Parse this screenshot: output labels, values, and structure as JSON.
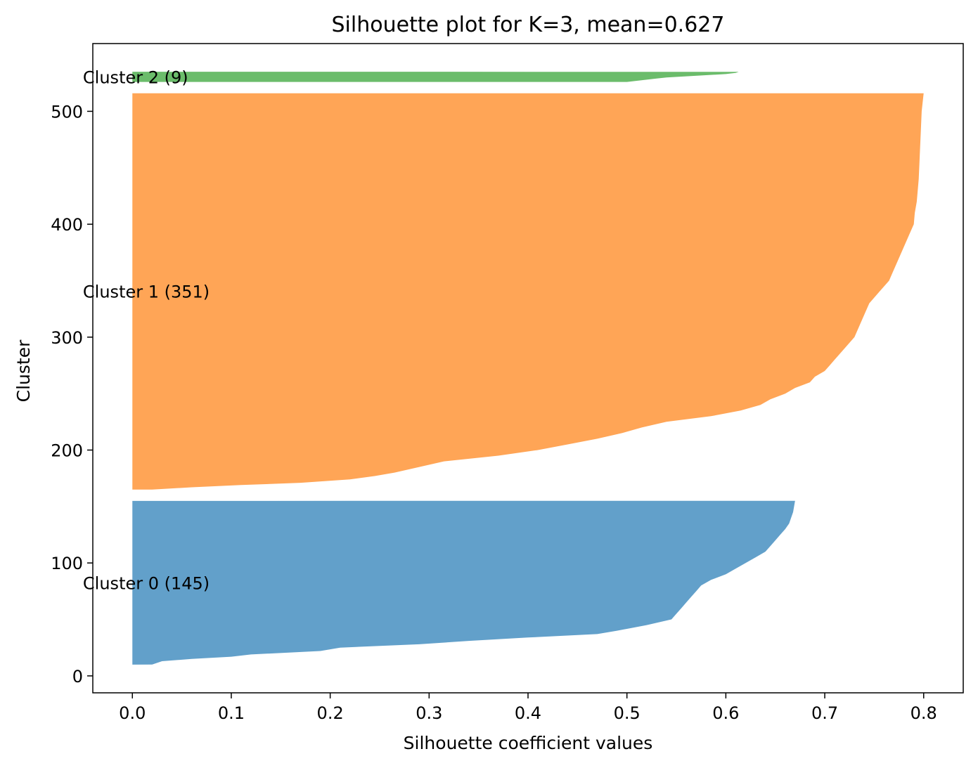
{
  "chart_data": {
    "type": "area",
    "title": "Silhouette plot for K=3, mean=0.627",
    "xlabel": "Silhouette coefficient values",
    "ylabel": "Cluster",
    "xlim": [
      -0.04,
      0.84
    ],
    "ylim": [
      -15,
      560
    ],
    "x_ticks": [
      "0.0",
      "0.1",
      "0.2",
      "0.3",
      "0.4",
      "0.5",
      "0.6",
      "0.7",
      "0.8"
    ],
    "y_ticks": [
      "0",
      "100",
      "200",
      "300",
      "400",
      "500"
    ],
    "grid": false,
    "legend": "none",
    "series": [
      {
        "name": "Cluster 0 (145)",
        "color": "#1f77b4",
        "y_range": [
          10,
          155
        ],
        "profile": [
          [
            10,
            0.02
          ],
          [
            13,
            0.03
          ],
          [
            15,
            0.06
          ],
          [
            17,
            0.1
          ],
          [
            19,
            0.12
          ],
          [
            22,
            0.19
          ],
          [
            25,
            0.21
          ],
          [
            28,
            0.29
          ],
          [
            31,
            0.34
          ],
          [
            34,
            0.4
          ],
          [
            37,
            0.47
          ],
          [
            40,
            0.49
          ],
          [
            45,
            0.52
          ],
          [
            50,
            0.545
          ],
          [
            55,
            0.55
          ],
          [
            60,
            0.555
          ],
          [
            65,
            0.56
          ],
          [
            70,
            0.565
          ],
          [
            75,
            0.57
          ],
          [
            80,
            0.575
          ],
          [
            85,
            0.585
          ],
          [
            90,
            0.6
          ],
          [
            95,
            0.61
          ],
          [
            100,
            0.62
          ],
          [
            105,
            0.63
          ],
          [
            110,
            0.64
          ],
          [
            115,
            0.645
          ],
          [
            120,
            0.65
          ],
          [
            125,
            0.655
          ],
          [
            130,
            0.66
          ],
          [
            135,
            0.664
          ],
          [
            140,
            0.666
          ],
          [
            145,
            0.668
          ],
          [
            150,
            0.669
          ],
          [
            155,
            0.67
          ]
        ]
      },
      {
        "name": "Cluster 1 (351)",
        "color": "#ff7f0e",
        "y_range": [
          165,
          516
        ],
        "profile": [
          [
            165,
            0.02
          ],
          [
            167,
            0.06
          ],
          [
            169,
            0.11
          ],
          [
            171,
            0.17
          ],
          [
            174,
            0.22
          ],
          [
            177,
            0.245
          ],
          [
            180,
            0.265
          ],
          [
            185,
            0.29
          ],
          [
            190,
            0.315
          ],
          [
            195,
            0.37
          ],
          [
            200,
            0.41
          ],
          [
            205,
            0.44
          ],
          [
            210,
            0.47
          ],
          [
            215,
            0.495
          ],
          [
            220,
            0.515
          ],
          [
            225,
            0.54
          ],
          [
            230,
            0.585
          ],
          [
            235,
            0.615
          ],
          [
            240,
            0.635
          ],
          [
            245,
            0.645
          ],
          [
            250,
            0.66
          ],
          [
            255,
            0.67
          ],
          [
            260,
            0.685
          ],
          [
            265,
            0.69
          ],
          [
            270,
            0.7
          ],
          [
            275,
            0.705
          ],
          [
            280,
            0.71
          ],
          [
            290,
            0.72
          ],
          [
            300,
            0.73
          ],
          [
            310,
            0.735
          ],
          [
            320,
            0.74
          ],
          [
            330,
            0.745
          ],
          [
            340,
            0.755
          ],
          [
            350,
            0.765
          ],
          [
            360,
            0.77
          ],
          [
            370,
            0.775
          ],
          [
            380,
            0.78
          ],
          [
            390,
            0.785
          ],
          [
            400,
            0.79
          ],
          [
            410,
            0.791
          ],
          [
            420,
            0.793
          ],
          [
            440,
            0.795
          ],
          [
            460,
            0.796
          ],
          [
            480,
            0.797
          ],
          [
            500,
            0.798
          ],
          [
            516,
            0.8
          ]
        ]
      },
      {
        "name": "Cluster 2 (9)",
        "color": "#2ca02c",
        "y_range": [
          526,
          535
        ],
        "profile": [
          [
            526,
            0.5
          ],
          [
            527,
            0.51
          ],
          [
            528,
            0.52
          ],
          [
            529,
            0.53
          ],
          [
            530,
            0.54
          ],
          [
            531,
            0.56
          ],
          [
            532,
            0.58
          ],
          [
            533,
            0.6
          ],
          [
            534,
            0.61
          ],
          [
            535,
            0.613
          ]
        ]
      }
    ],
    "annotations": [
      {
        "text": "Cluster 0 (145)",
        "x": -0.05,
        "y": 82.5
      },
      {
        "text": "Cluster 1 (351)",
        "x": -0.05,
        "y": 340.5
      },
      {
        "text": "Cluster 2 (9)",
        "x": -0.05,
        "y": 530.5
      }
    ]
  }
}
